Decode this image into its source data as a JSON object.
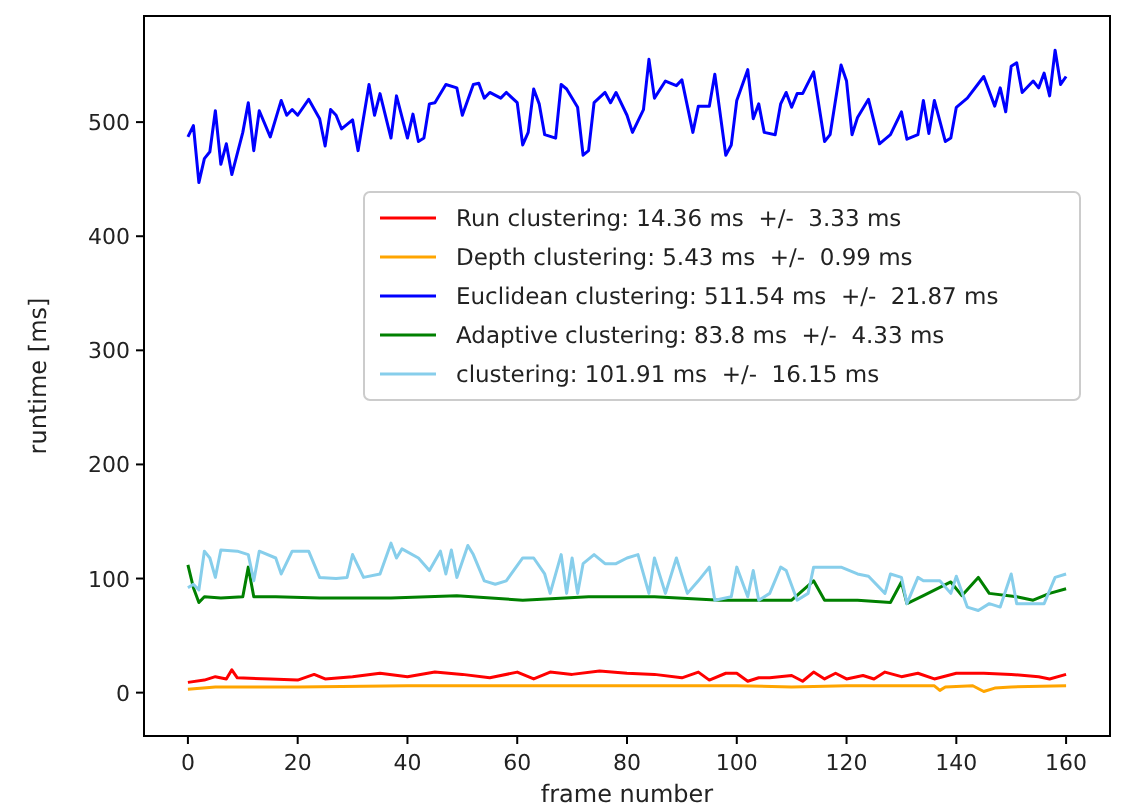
{
  "chart_data": {
    "type": "line",
    "xlabel": "frame number",
    "ylabel": "runtime [ms]",
    "xlim": [
      -8,
      168
    ],
    "ylim": [
      -38,
      593
    ],
    "xticks": [
      0,
      20,
      40,
      60,
      80,
      100,
      120,
      140,
      160
    ],
    "yticks": [
      0,
      100,
      200,
      300,
      400,
      500
    ],
    "legend": "right",
    "grid": false,
    "series": [
      {
        "name": "Run clustering: 14.36 ms  +/-  3.33 ms",
        "color": "#ff0000",
        "x": [
          0,
          3,
          5,
          7,
          8,
          9,
          15,
          20,
          23,
          25,
          30,
          35,
          40,
          45,
          50,
          55,
          60,
          63,
          66,
          70,
          75,
          80,
          85,
          90,
          93,
          95,
          98,
          100,
          102,
          104,
          106,
          110,
          112,
          114,
          116,
          118,
          120,
          123,
          125,
          127,
          130,
          133,
          136,
          140,
          145,
          150,
          155,
          157,
          160
        ],
        "values": [
          9,
          11,
          14,
          12,
          20,
          13,
          12,
          11,
          16,
          12,
          14,
          17,
          14,
          18,
          16,
          13,
          18,
          12,
          18,
          16,
          19,
          17,
          16,
          13,
          18,
          11,
          17,
          17,
          10,
          13,
          13,
          15,
          10,
          18,
          12,
          17,
          12,
          15,
          12,
          18,
          14,
          17,
          12,
          17,
          17,
          16,
          14,
          12,
          16
        ]
      },
      {
        "name": "Depth clustering: 5.43 ms  +/-  0.99 ms",
        "color": "#ffa500",
        "x": [
          0,
          5,
          20,
          40,
          60,
          80,
          100,
          110,
          120,
          136,
          137,
          138,
          143,
          145,
          147,
          150,
          160
        ],
        "values": [
          3,
          5,
          5,
          6,
          6,
          6,
          6,
          5,
          6,
          6,
          2,
          5,
          6,
          1,
          4,
          5,
          6
        ]
      },
      {
        "name": "Euclidean clustering: 511.54 ms  +/-  21.87 ms",
        "color": "#0000ff",
        "x": [
          0,
          1,
          2,
          3,
          4,
          5,
          6,
          7,
          8,
          10,
          11,
          12,
          13,
          15,
          17,
          18,
          19,
          20,
          22,
          24,
          25,
          26,
          27,
          28,
          30,
          31,
          33,
          34,
          35,
          37,
          38,
          40,
          41,
          42,
          43,
          44,
          45,
          47,
          49,
          50,
          52,
          53,
          54,
          55,
          57,
          58,
          60,
          61,
          62,
          63,
          64,
          65,
          67,
          68,
          69,
          71,
          72,
          73,
          74,
          76,
          77,
          78,
          80,
          81,
          83,
          84,
          85,
          87,
          89,
          90,
          92,
          93,
          95,
          96,
          98,
          99,
          100,
          102,
          103,
          104,
          105,
          107,
          108,
          109,
          110,
          111,
          112,
          114,
          116,
          117,
          119,
          120,
          121,
          122,
          124,
          126,
          128,
          130,
          131,
          133,
          134,
          135,
          136,
          138,
          139,
          140,
          142,
          145,
          147,
          148,
          149,
          150,
          151,
          152,
          154,
          155,
          156,
          157,
          158,
          159,
          160
        ],
        "values": [
          487,
          497,
          447,
          468,
          474,
          510,
          463,
          481,
          454,
          491,
          517,
          475,
          510,
          487,
          519,
          506,
          511,
          506,
          520,
          503,
          479,
          511,
          506,
          494,
          502,
          475,
          533,
          506,
          525,
          486,
          523,
          486,
          507,
          483,
          486,
          516,
          517,
          533,
          530,
          506,
          533,
          534,
          521,
          526,
          521,
          526,
          517,
          480,
          491,
          529,
          516,
          489,
          486,
          533,
          529,
          513,
          471,
          475,
          517,
          526,
          517,
          526,
          506,
          491,
          511,
          555,
          521,
          536,
          532,
          537,
          491,
          514,
          514,
          542,
          471,
          480,
          519,
          546,
          503,
          516,
          491,
          489,
          516,
          526,
          513,
          525,
          525,
          544,
          483,
          489,
          550,
          536,
          489,
          504,
          520,
          481,
          489,
          509,
          485,
          489,
          519,
          490,
          519,
          483,
          486,
          513,
          521,
          540,
          514,
          530,
          509,
          549,
          552,
          526,
          536,
          530,
          543,
          523,
          563,
          533,
          540
        ]
      },
      {
        "name": "Adaptive clustering: 83.8 ms  +/-  4.33 ms",
        "color": "#008000",
        "x": [
          0,
          1,
          2,
          3,
          6,
          10,
          11,
          12,
          16,
          24,
          37,
          49,
          61,
          73,
          85,
          97,
          110,
          114,
          116,
          122,
          128,
          130,
          131,
          134,
          139,
          141,
          144,
          146,
          151,
          154,
          157,
          160
        ],
        "values": [
          112,
          92,
          79,
          84,
          83,
          84,
          110,
          84,
          84,
          83,
          83,
          85,
          81,
          84,
          84,
          81,
          81,
          98,
          81,
          81,
          79,
          97,
          78,
          85,
          97,
          85,
          101,
          87,
          84,
          81,
          87,
          91
        ]
      },
      {
        "name": "clustering: 101.91 ms  +/-  16.15 ms",
        "color": "#87ceeb",
        "x": [
          0,
          1,
          2,
          3,
          4,
          5,
          6,
          9,
          11,
          12,
          13,
          16,
          17,
          19,
          22,
          24,
          27,
          29,
          30,
          32,
          35,
          37,
          38,
          39,
          42,
          44,
          46,
          47,
          48,
          49,
          51,
          52,
          54,
          56,
          58,
          61,
          63,
          65,
          66,
          68,
          69,
          70,
          71,
          72,
          74,
          76,
          78,
          80,
          82,
          84,
          85,
          87,
          89,
          91,
          93,
          95,
          96,
          99,
          100,
          102,
          103,
          104,
          106,
          108,
          109,
          111,
          113,
          114,
          117,
          119,
          122,
          124,
          127,
          128,
          130,
          131,
          133,
          134,
          137,
          139,
          140,
          142,
          144,
          146,
          148,
          150,
          151,
          154,
          156,
          158,
          160
        ],
        "values": [
          92,
          95,
          90,
          124,
          118,
          101,
          125,
          124,
          121,
          98,
          124,
          118,
          104,
          124,
          124,
          101,
          100,
          101,
          121,
          101,
          104,
          131,
          118,
          126,
          118,
          107,
          124,
          104,
          125,
          101,
          129,
          121,
          98,
          95,
          98,
          118,
          118,
          104,
          87,
          121,
          87,
          118,
          87,
          113,
          121,
          113,
          113,
          118,
          121,
          87,
          118,
          87,
          118,
          87,
          98,
          110,
          81,
          84,
          110,
          84,
          107,
          81,
          87,
          110,
          107,
          81,
          87,
          110,
          110,
          110,
          104,
          102,
          87,
          104,
          101,
          78,
          101,
          98,
          98,
          87,
          102,
          75,
          72,
          78,
          75,
          104,
          78,
          78,
          78,
          101,
          104
        ]
      }
    ]
  }
}
